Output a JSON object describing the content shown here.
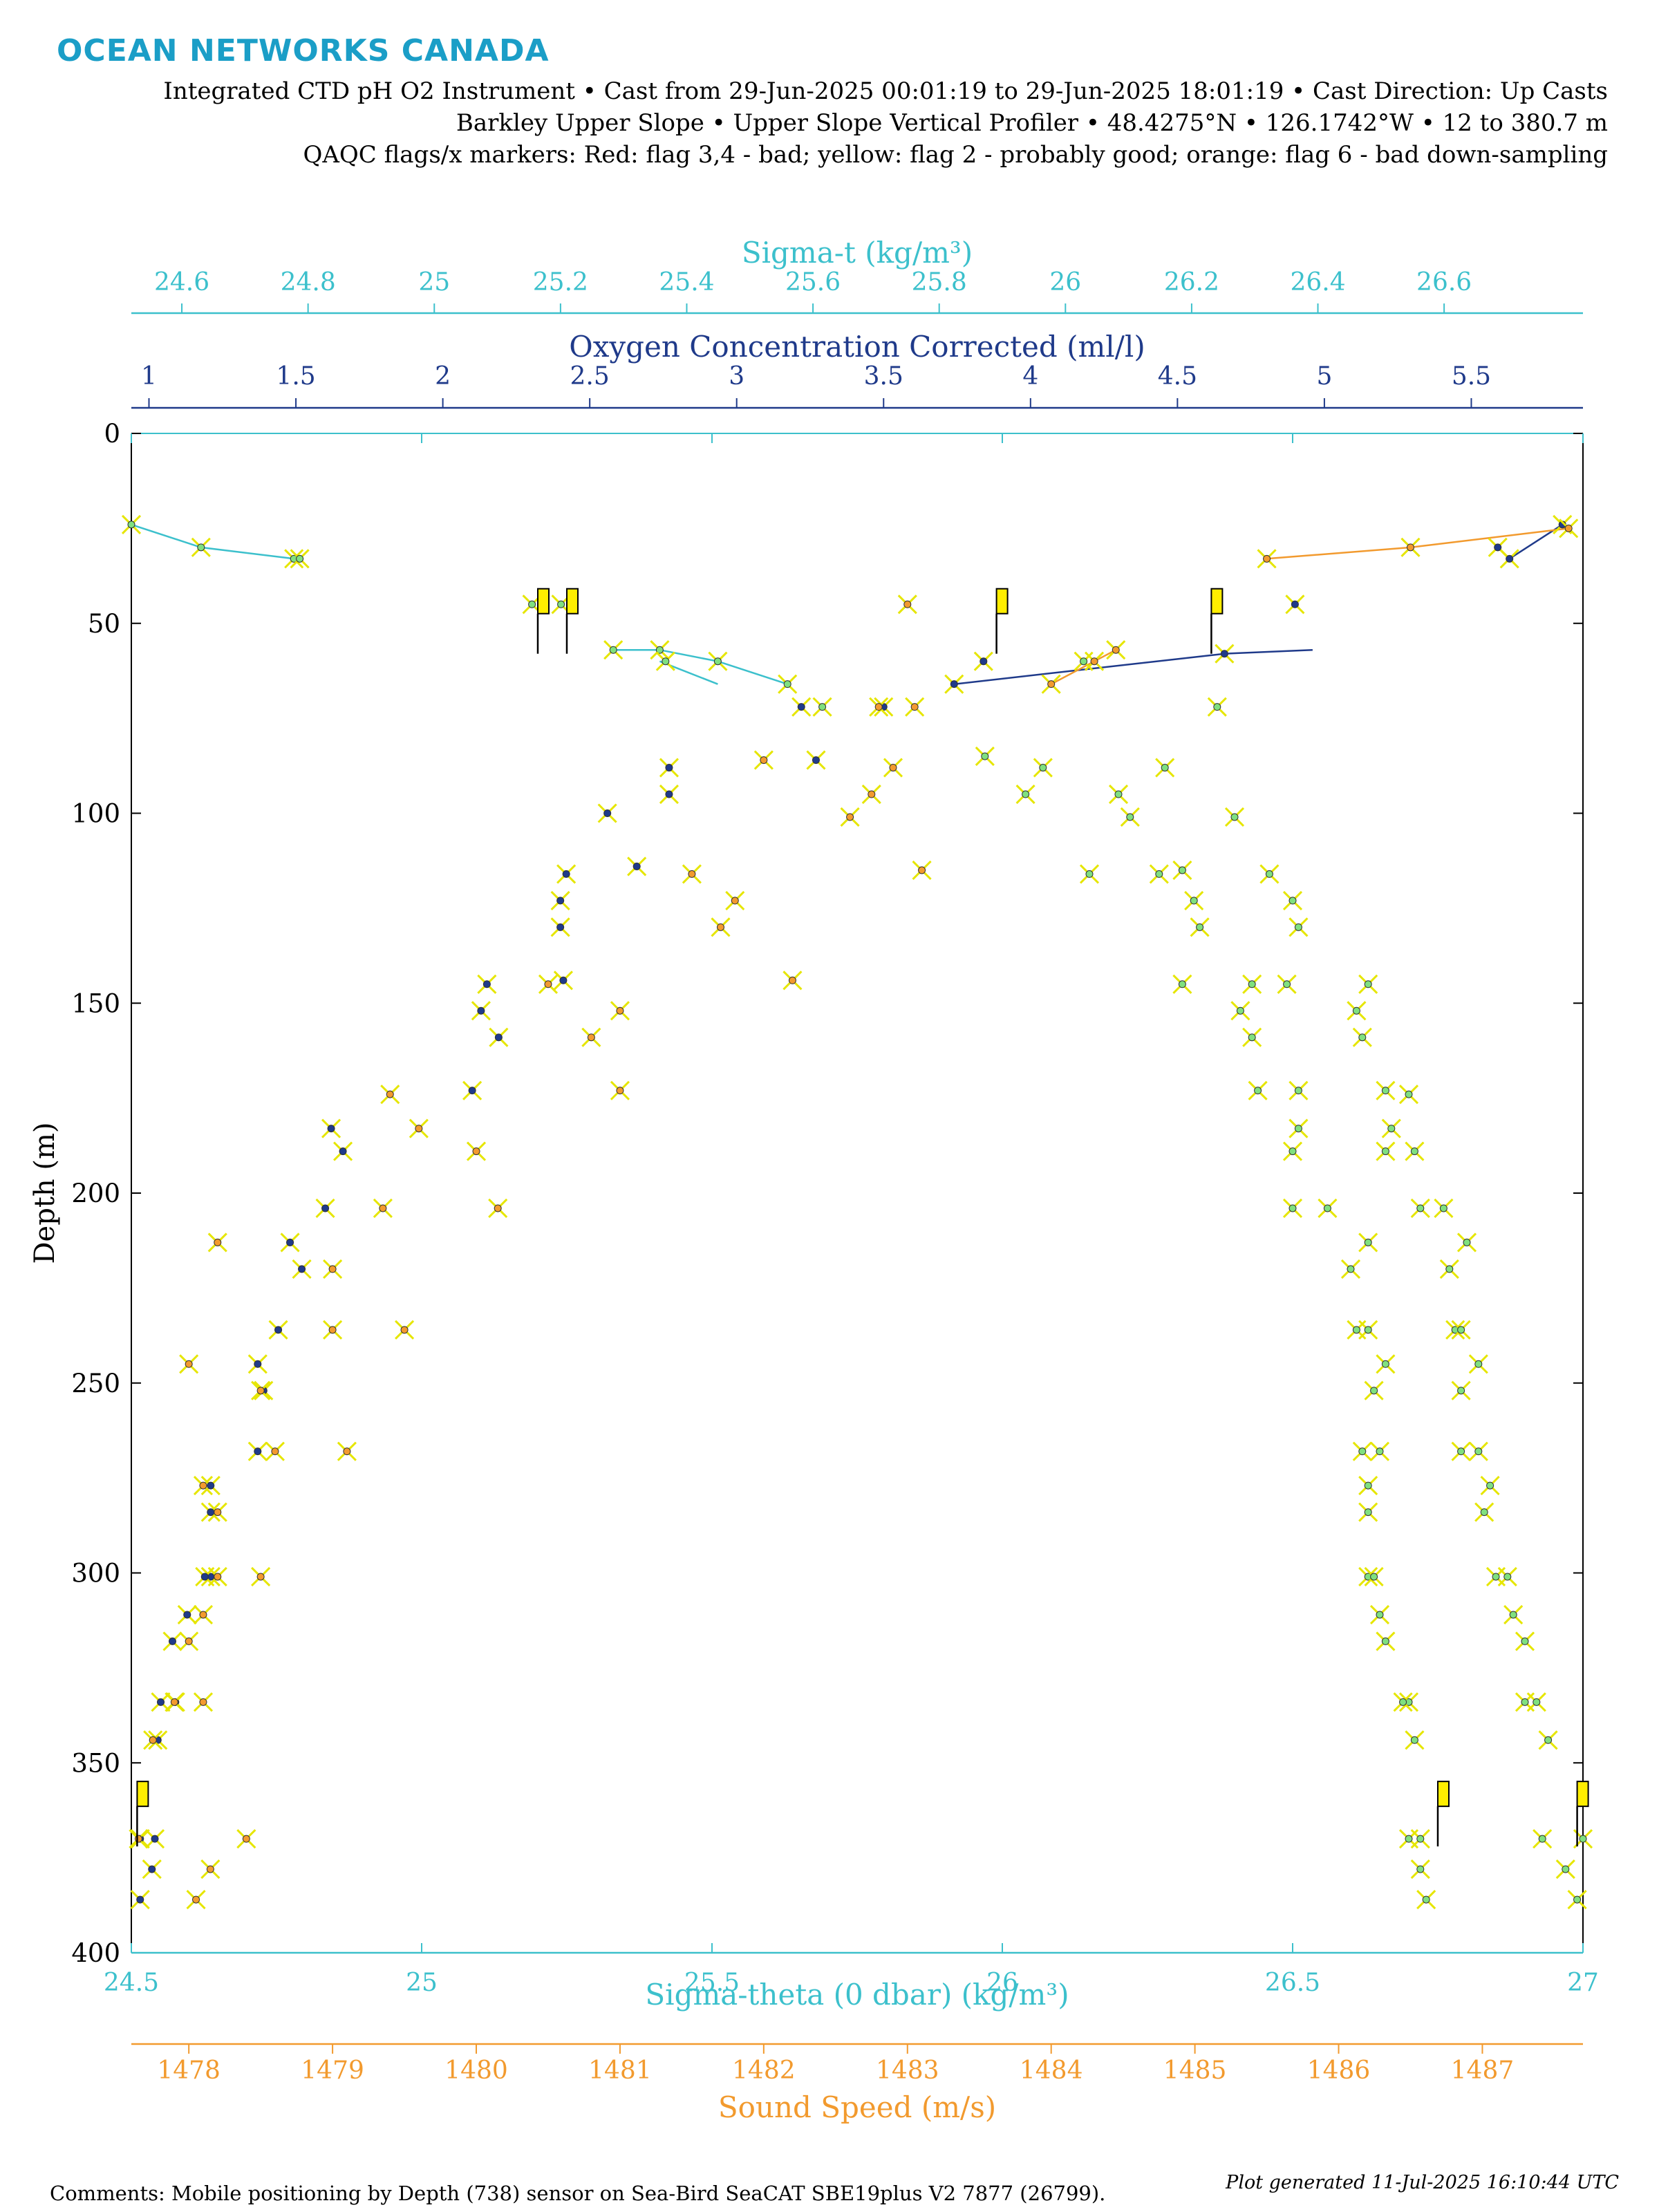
{
  "header": {
    "logo_text": "OCEAN NETWORKS CANADA",
    "line1": "Integrated CTD pH O2 Instrument • Cast from 29-Jun-2025 00:01:19 to 29-Jun-2025 18:01:19 • Cast Direction: Up Casts",
    "line2": "Barkley Upper Slope • Upper Slope Vertical Profiler • 48.4275°N • 126.1742°W • 12 to 380.7 m",
    "line3": "QAQC flags/x markers: Red: flag 3,4 - bad; yellow: flag 2 - probably good; orange: flag 6 - bad down-sampling"
  },
  "footer": {
    "comments": "Comments: Mobile positioning by Depth (738) sensor on Sea-Bird SeaCAT SBE19plus V2 7877 (26799).",
    "generated": "Plot generated 11-Jul-2025 16:10:44 UTC"
  },
  "colors": {
    "sigma": "#3cc0cc",
    "oxygen": "#1f3a8a",
    "sound": "#f29a2e",
    "flag_yellow": "#ffee00",
    "x_marker": "#e6e600",
    "frame": "#000000"
  },
  "chart_data": {
    "type": "scatter",
    "ylabel": "Depth (m)",
    "ylim": [
      0,
      400
    ],
    "y_ticks": [
      "0",
      "50",
      "100",
      "150",
      "200",
      "250",
      "300",
      "350",
      "400"
    ],
    "y_reversed": true,
    "axes": {
      "sigma_theta": {
        "label": "Sigma-theta (0 dbar) (kg/m³)",
        "position": "bottom",
        "range": [
          24.5,
          27
        ],
        "ticks": [
          "24.5",
          "25",
          "25.5",
          "26",
          "26.5",
          "27"
        ],
        "color": "#3cc0cc"
      },
      "sound_speed": {
        "label": "Sound Speed (m/s)",
        "position": "bottom-outer",
        "range": [
          1477.6,
          1487.7
        ],
        "ticks": [
          "1478",
          "1479",
          "1480",
          "1481",
          "1482",
          "1483",
          "1484",
          "1485",
          "1486",
          "1487"
        ],
        "color": "#f29a2e"
      },
      "sigma_t": {
        "label": "Sigma-t (kg/m³)",
        "position": "top-outer",
        "range": [
          24.52,
          26.82
        ],
        "ticks": [
          "24.6",
          "24.8",
          "25",
          "25.2",
          "25.4",
          "25.6",
          "25.8",
          "26",
          "26.2",
          "26.4",
          "26.6"
        ],
        "color": "#3cc0cc"
      },
      "oxygen": {
        "label": "Oxygen Concentration Corrected (ml/l)",
        "position": "top",
        "range": [
          0.94,
          5.88
        ],
        "ticks": [
          "1",
          "1.5",
          "2",
          "2.5",
          "3",
          "3.5",
          "4",
          "4.5",
          "5",
          "5.5"
        ],
        "color": "#1f3a8a"
      }
    },
    "series": [
      {
        "key": "sigma_theta",
        "line_color": "#3cc0cc",
        "fill": "#7fe07f",
        "lines": [
          [
            [
              24.5,
              24
            ],
            [
              24.62,
              30
            ],
            [
              24.78,
              33
            ]
          ],
          [
            [
              25.33,
              57
            ],
            [
              25.41,
              57
            ],
            [
              25.51,
              60
            ],
            [
              25.63,
              66
            ]
          ],
          [
            [
              25.41,
              60
            ],
            [
              25.51,
              66
            ]
          ]
        ],
        "points": [
          [
            24.5,
            24
          ],
          [
            24.62,
            30
          ],
          [
            24.78,
            33
          ],
          [
            24.79,
            33
          ],
          [
            25.19,
            45
          ],
          [
            25.24,
            45
          ],
          [
            25.33,
            57
          ],
          [
            25.41,
            57
          ],
          [
            25.42,
            60
          ],
          [
            25.51,
            60
          ],
          [
            25.63,
            66
          ],
          [
            25.69,
            72
          ],
          [
            26.14,
            60
          ],
          [
            26.37,
            72
          ],
          [
            26.07,
            88
          ],
          [
            25.97,
            85
          ],
          [
            26.04,
            95
          ],
          [
            26.2,
            95
          ],
          [
            26.28,
            88
          ],
          [
            26.22,
            101
          ],
          [
            26.4,
            101
          ],
          [
            26.15,
            116
          ],
          [
            26.27,
            116
          ],
          [
            26.31,
            115
          ],
          [
            26.33,
            123
          ],
          [
            26.34,
            130
          ],
          [
            26.46,
            116
          ],
          [
            26.5,
            123
          ],
          [
            26.51,
            130
          ],
          [
            26.31,
            145
          ],
          [
            26.43,
            145
          ],
          [
            26.49,
            145
          ],
          [
            26.41,
            152
          ],
          [
            26.43,
            159
          ],
          [
            26.44,
            173
          ],
          [
            26.51,
            173
          ],
          [
            26.51,
            183
          ],
          [
            26.5,
            189
          ],
          [
            26.5,
            204
          ],
          [
            26.56,
            204
          ],
          [
            26.6,
            220
          ],
          [
            26.63,
            213
          ],
          [
            26.61,
            236
          ],
          [
            26.63,
            236
          ],
          [
            26.66,
            245
          ],
          [
            26.64,
            252
          ],
          [
            26.62,
            268
          ],
          [
            26.65,
            268
          ],
          [
            26.63,
            277
          ],
          [
            26.63,
            284
          ],
          [
            26.63,
            301
          ],
          [
            26.64,
            301
          ],
          [
            26.65,
            311
          ],
          [
            26.66,
            318
          ],
          [
            26.7,
            334
          ],
          [
            26.69,
            334
          ],
          [
            26.71,
            344
          ],
          [
            26.72,
            370
          ],
          [
            26.7,
            370
          ],
          [
            26.72,
            378
          ],
          [
            26.73,
            386
          ],
          [
            26.61,
            152
          ],
          [
            26.62,
            159
          ],
          [
            26.63,
            145
          ],
          [
            26.66,
            173
          ],
          [
            26.67,
            183
          ],
          [
            26.66,
            189
          ],
          [
            26.7,
            174
          ],
          [
            26.8,
            213
          ],
          [
            26.77,
            220
          ],
          [
            26.78,
            236
          ],
          [
            26.79,
            236
          ],
          [
            26.79,
            252
          ],
          [
            26.82,
            245
          ],
          [
            26.79,
            268
          ],
          [
            26.82,
            268
          ],
          [
            26.84,
            277
          ],
          [
            26.83,
            284
          ],
          [
            26.85,
            301
          ],
          [
            26.87,
            301
          ],
          [
            26.88,
            311
          ],
          [
            26.9,
            318
          ],
          [
            26.9,
            334
          ],
          [
            26.92,
            334
          ],
          [
            26.94,
            344
          ],
          [
            26.93,
            370
          ],
          [
            26.97,
            378
          ],
          [
            26.99,
            386
          ],
          [
            27.0,
            370
          ],
          [
            26.72,
            204
          ],
          [
            26.76,
            204
          ],
          [
            26.71,
            189
          ]
        ]
      },
      {
        "key": "oxygen",
        "line_color": "#1f3a8a",
        "fill": "#1f3a8a",
        "lines": [
          [
            [
              5.81,
              24
            ],
            [
              5.63,
              33
            ],
            [
              5.59,
              30
            ]
          ],
          [
            [
              3.74,
              66
            ],
            [
              4.66,
              58
            ],
            [
              4.96,
              57
            ]
          ]
        ],
        "points": [
          [
            5.81,
            24
          ],
          [
            5.63,
            33
          ],
          [
            5.59,
            30
          ],
          [
            4.66,
            58
          ],
          [
            4.9,
            45
          ],
          [
            3.74,
            66
          ],
          [
            3.84,
            60
          ],
          [
            3.5,
            72
          ],
          [
            3.22,
            72
          ],
          [
            2.77,
            88
          ],
          [
            2.77,
            95
          ],
          [
            3.27,
            86
          ],
          [
            2.56,
            100
          ],
          [
            2.66,
            114
          ],
          [
            2.42,
            116
          ],
          [
            2.4,
            123
          ],
          [
            2.4,
            130
          ],
          [
            2.41,
            144
          ],
          [
            2.15,
            145
          ],
          [
            2.13,
            152
          ],
          [
            2.19,
            159
          ],
          [
            2.1,
            173
          ],
          [
            1.62,
            183
          ],
          [
            1.66,
            189
          ],
          [
            1.6,
            204
          ],
          [
            1.48,
            213
          ],
          [
            1.52,
            220
          ],
          [
            1.44,
            236
          ],
          [
            1.37,
            245
          ],
          [
            1.39,
            252
          ],
          [
            1.37,
            268
          ],
          [
            1.21,
            277
          ],
          [
            1.21,
            284
          ],
          [
            1.21,
            301
          ],
          [
            1.19,
            301
          ],
          [
            1.13,
            311
          ],
          [
            1.08,
            318
          ],
          [
            1.04,
            334
          ],
          [
            1.09,
            334
          ],
          [
            1.03,
            344
          ],
          [
            0.97,
            370
          ],
          [
            1.01,
            378
          ],
          [
            0.97,
            386
          ],
          [
            1.02,
            370
          ]
        ]
      },
      {
        "key": "sound_speed",
        "line_color": "#f29a2e",
        "fill": "#f29a2e",
        "lines": [
          [
            [
              1485.5,
              33
            ],
            [
              1486.5,
              30
            ],
            [
              1487.6,
              25
            ]
          ],
          [
            [
              1484.0,
              66
            ],
            [
              1484.3,
              60
            ],
            [
              1484.45,
              57
            ]
          ]
        ],
        "points": [
          [
            1485.5,
            33
          ],
          [
            1486.5,
            30
          ],
          [
            1487.6,
            25
          ],
          [
            1483.0,
            45
          ],
          [
            1483.05,
            72
          ],
          [
            1482.8,
            72
          ],
          [
            1484.0,
            66
          ],
          [
            1484.3,
            60
          ],
          [
            1484.45,
            57
          ],
          [
            1482.0,
            86
          ],
          [
            1482.9,
            88
          ],
          [
            1482.75,
            95
          ],
          [
            1482.6,
            101
          ],
          [
            1483.1,
            115
          ],
          [
            1481.5,
            116
          ],
          [
            1481.8,
            123
          ],
          [
            1481.7,
            130
          ],
          [
            1482.2,
            144
          ],
          [
            1480.5,
            145
          ],
          [
            1480.8,
            159
          ],
          [
            1481.0,
            152
          ],
          [
            1481.0,
            173
          ],
          [
            1479.4,
            174
          ],
          [
            1479.6,
            183
          ],
          [
            1480.0,
            189
          ],
          [
            1480.15,
            204
          ],
          [
            1479.35,
            204
          ],
          [
            1478.2,
            213
          ],
          [
            1479.0,
            220
          ],
          [
            1479.0,
            236
          ],
          [
            1479.5,
            236
          ],
          [
            1478.0,
            245
          ],
          [
            1478.5,
            252
          ],
          [
            1478.6,
            268
          ],
          [
            1479.1,
            268
          ],
          [
            1478.1,
            277
          ],
          [
            1478.2,
            284
          ],
          [
            1478.5,
            301
          ],
          [
            1478.2,
            301
          ],
          [
            1478.1,
            311
          ],
          [
            1478.0,
            318
          ],
          [
            1478.1,
            334
          ],
          [
            1477.9,
            334
          ],
          [
            1478.4,
            370
          ],
          [
            1478.15,
            378
          ],
          [
            1478.05,
            386
          ],
          [
            1477.75,
            344
          ],
          [
            1477.65,
            370
          ]
        ]
      }
    ],
    "flags": [
      {
        "x": 25.2,
        "y": 58,
        "axis": "sigma_theta"
      },
      {
        "x": 25.25,
        "y": 58,
        "axis": "sigma_theta"
      },
      {
        "x": 25.99,
        "y": 58,
        "axis": "sigma_theta"
      },
      {
        "x": 26.36,
        "y": 58,
        "axis": "sigma_theta"
      },
      {
        "x": 24.51,
        "y": 372,
        "axis": "sigma_theta"
      },
      {
        "x": 26.75,
        "y": 372,
        "axis": "sigma_theta"
      },
      {
        "x": 26.99,
        "y": 372,
        "axis": "sigma_theta"
      }
    ]
  }
}
